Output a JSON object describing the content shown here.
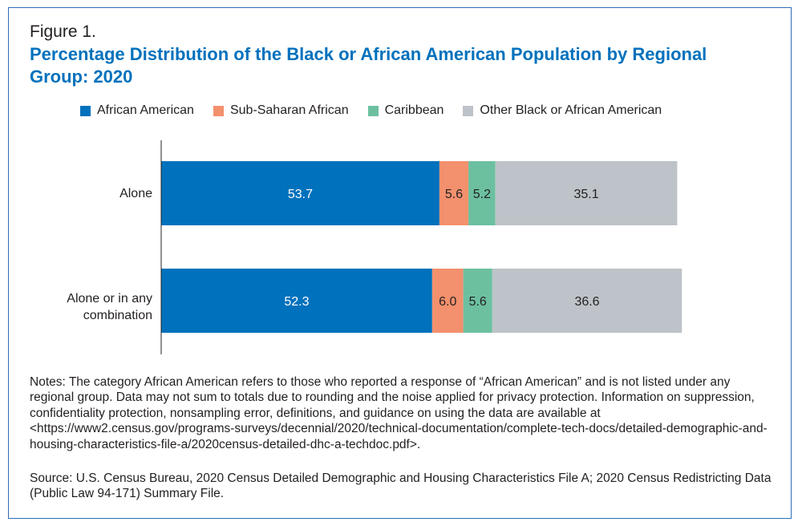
{
  "figure_label": "Figure 1.",
  "chart_data": {
    "type": "bar",
    "orientation": "horizontal",
    "stacked": true,
    "title": "Percentage Distribution of the Black or African American Population by Regional Group: 2020",
    "categories": [
      "Alone",
      "Alone or in any combination"
    ],
    "series": [
      {
        "name": "African American",
        "color": "#0071bc",
        "label_color": "#ffffff",
        "values": [
          53.7,
          52.3
        ]
      },
      {
        "name": "Sub-Saharan African",
        "color": "#f3906d",
        "label_color": "#231f20",
        "values": [
          5.6,
          6.0
        ]
      },
      {
        "name": "Caribbean",
        "color": "#6cc0a0",
        "label_color": "#231f20",
        "values": [
          5.2,
          5.6
        ]
      },
      {
        "name": "Other Black or African American",
        "color": "#bdc3c8",
        "label_color": "#231f20",
        "values": [
          35.1,
          36.6
        ]
      }
    ],
    "xlim": [
      0,
      100
    ],
    "grid": false,
    "legend": "top"
  },
  "notes": "Notes: The category African American refers to those who reported a response of “African American” and is not listed under any regional group. Data may not sum to totals due to rounding and the noise applied for privacy protection. Information on suppression, confidentiality protection, nonsampling error, definitions, and guidance on using the data are available at <https://www2.census.gov/programs-surveys/decennial/2020/technical-documentation/complete-tech-docs/detailed-demographic-and-housing-characteristics-file-a/2020census-detailed-dhc-a-techdoc.pdf>.",
  "source": "Source: U.S. Census Bureau, 2020 Census Detailed Demographic and Housing Characteristics File A; 2020 Census Redistricting Data (Public Law 94-171) Summary File."
}
